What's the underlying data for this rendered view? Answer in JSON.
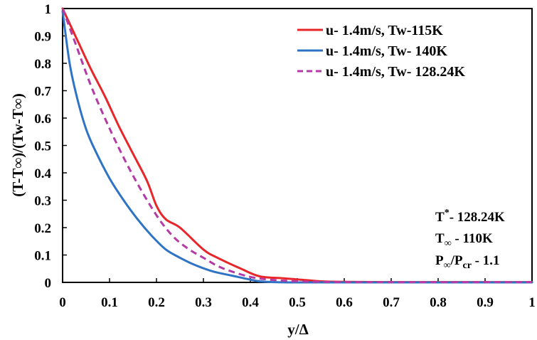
{
  "chart_data": {
    "type": "line",
    "title": "",
    "xlabel": "y/Δ",
    "ylabel": "(T-T∞)/(Tw-T∞)",
    "xlim": [
      0,
      1
    ],
    "ylim": [
      0,
      1
    ],
    "x_ticks": [
      "0",
      "0.1",
      "0.2",
      "0.3",
      "0.4",
      "0.5",
      "0.6",
      "0.7",
      "0.8",
      "0.9",
      "1"
    ],
    "y_ticks": [
      "0",
      "0.1",
      "0.2",
      "0.3",
      "0.4",
      "0.5",
      "0.6",
      "0.7",
      "0.8",
      "0.9",
      "1"
    ],
    "legend_position": "top-right",
    "series": [
      {
        "name": "u- 1.4m/s, Tw-115K",
        "color": "#e8262a",
        "dash": "solid",
        "x": [
          0,
          0.03,
          0.06,
          0.09,
          0.12,
          0.15,
          0.18,
          0.2,
          0.22,
          0.25,
          0.3,
          0.33,
          0.38,
          0.42,
          0.47,
          0.52,
          0.56,
          0.6,
          0.7,
          0.8,
          0.9,
          1.0
        ],
        "y": [
          1.0,
          0.89,
          0.78,
          0.68,
          0.57,
          0.47,
          0.37,
          0.28,
          0.23,
          0.2,
          0.12,
          0.09,
          0.05,
          0.022,
          0.015,
          0.008,
          0.003,
          0.002,
          0.001,
          0.001,
          0.001,
          0.001
        ]
      },
      {
        "name": "u- 1.4m/s, Tw- 140K",
        "color": "#2e73c4",
        "dash": "solid",
        "x": [
          0,
          0.015,
          0.03,
          0.05,
          0.07,
          0.1,
          0.13,
          0.16,
          0.19,
          0.22,
          0.25,
          0.28,
          0.32,
          0.36,
          0.4,
          0.42,
          0.45,
          0.5,
          0.6,
          0.8,
          1.0
        ],
        "y": [
          0.99,
          0.8,
          0.68,
          0.56,
          0.48,
          0.38,
          0.3,
          0.23,
          0.17,
          0.12,
          0.09,
          0.065,
          0.04,
          0.025,
          0.01,
          0.004,
          0.001,
          0.0,
          0.0,
          0.0,
          0.0
        ]
      },
      {
        "name": "u- 1.4m/s, Tw- 128.24K",
        "color": "#b43aa6",
        "dash": "dashed",
        "x": [
          0,
          0.03,
          0.06,
          0.09,
          0.12,
          0.15,
          0.18,
          0.21,
          0.24,
          0.27,
          0.3,
          0.33,
          0.36,
          0.4,
          0.44,
          0.5,
          0.55,
          0.6,
          0.8,
          1.0
        ],
        "y": [
          1.0,
          0.86,
          0.72,
          0.6,
          0.49,
          0.39,
          0.3,
          0.22,
          0.16,
          0.12,
          0.09,
          0.06,
          0.04,
          0.02,
          0.01,
          0.004,
          0.002,
          0.001,
          0.001,
          0.001
        ]
      }
    ],
    "annotations": {
      "t_star": {
        "main": "T",
        "sup": "*",
        "rest": "- 128.24K"
      },
      "t_inf": {
        "main": "T",
        "sub": "∞",
        "rest": " - 110K"
      },
      "p_ratio": {
        "main1": "P",
        "sub1": "∞",
        "main2": "/P",
        "sub2": "cr",
        "rest": " - 1.1"
      }
    }
  }
}
